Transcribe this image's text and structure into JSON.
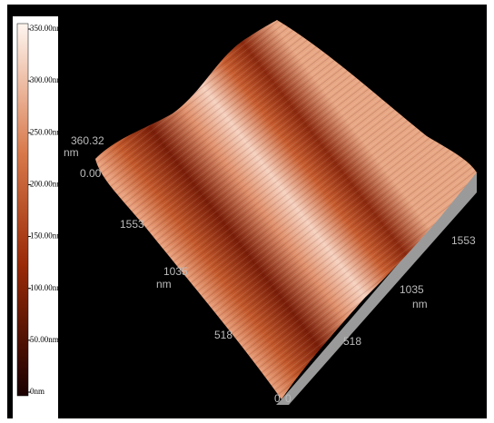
{
  "colorbar": {
    "labels": [
      "350.00nm",
      "300.00nm",
      "250.00nm",
      "200.00nm",
      "150.00nm",
      "100.00nm",
      "50.00nm",
      "0nm"
    ]
  },
  "axes": {
    "z_max": "360.32",
    "z_unit": "nm",
    "z_min": "0.00",
    "left_axis": {
      "ticks": [
        "1553",
        "1035",
        "518",
        "0"
      ],
      "unit": "nm"
    },
    "right_axis": {
      "ticks": [
        "0",
        "518",
        "1035",
        "1553"
      ],
      "unit": "nm"
    }
  }
}
